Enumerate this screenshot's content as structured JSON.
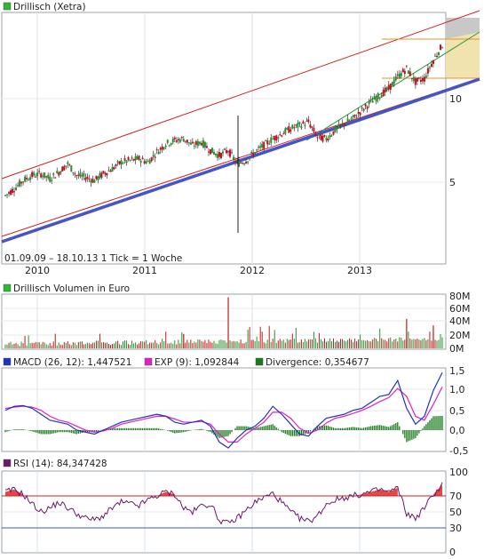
{
  "colors": {
    "price_box": "#2fb82f",
    "channel_red": "#d21f1f",
    "trend_blue": "#4455c8",
    "trend_green": "#2a9a3a",
    "candle_up": "#2c8f2c",
    "candle_down": "#c0121b",
    "volume": "#c01a1a",
    "macd": "#2233bb",
    "exp": "#e020c8",
    "divergence": "#1a7a1a",
    "rsi_line": "#6a1a6a",
    "rsi_fill": "#e34848",
    "rsi_70": "#d21f1f",
    "rsi_30": "#4455c8"
  },
  "chart_data": [
    {
      "type": "line",
      "title": "Drillisch (Xetra)",
      "note": "01.09.09 – 18.10.13   1 Tick = 1 Woche",
      "x_tick_labels": [
        "2010",
        "2011",
        "2012",
        "2013"
      ],
      "y_tick_labels": [
        "10",
        "5"
      ],
      "ylim": [
        3.5,
        14
      ],
      "series": [
        {
          "name": "Drillisch (Xetra)",
          "x": [
            "2009-09",
            "2009-10",
            "2009-11",
            "2009-12",
            "2010-01",
            "2010-02",
            "2010-03",
            "2010-04",
            "2010-05",
            "2010-06",
            "2010-07",
            "2010-08",
            "2010-09",
            "2010-10",
            "2010-11",
            "2010-12",
            "2011-01",
            "2011-02",
            "2011-03",
            "2011-04",
            "2011-05",
            "2011-06",
            "2011-07",
            "2011-08",
            "2011-09",
            "2011-10",
            "2011-11",
            "2011-12",
            "2012-01",
            "2012-02",
            "2012-03",
            "2012-04",
            "2012-05",
            "2012-06",
            "2012-07",
            "2012-08",
            "2012-09",
            "2012-10",
            "2012-11",
            "2012-12",
            "2013-01",
            "2013-02",
            "2013-03",
            "2013-04",
            "2013-05",
            "2013-06",
            "2013-07",
            "2013-08",
            "2013-09",
            "2013-10"
          ],
          "values": [
            4.2,
            4.6,
            5.1,
            5.4,
            5.5,
            5.2,
            5.6,
            6.1,
            5.4,
            5.3,
            5.1,
            5.5,
            5.8,
            6.2,
            6.3,
            6.4,
            6.2,
            6.8,
            7.3,
            7.5,
            7.6,
            7.2,
            7.4,
            6.9,
            6.6,
            6.9,
            6.1,
            6.3,
            6.8,
            7.2,
            7.6,
            7.9,
            8.2,
            8.4,
            8.6,
            7.7,
            7.6,
            8.1,
            8.5,
            8.8,
            9.3,
            9.8,
            10.2,
            10.6,
            11.3,
            11.8,
            11.0,
            11.2,
            12.3,
            13.2
          ]
        }
      ],
      "channel_lines": [
        "upper channel",
        "lower channel",
        "long-term support",
        "short-term support"
      ],
      "projection_zone": true
    },
    {
      "type": "bar",
      "title": "Drillisch Volumen in Euro",
      "y_tick_labels": [
        "80M",
        "60M",
        "40M",
        "20M",
        "0M"
      ],
      "ylim": [
        0,
        80
      ],
      "peaks": [
        {
          "x": "2011-10",
          "value": 78
        },
        {
          "x": "2011-05",
          "value": 22
        },
        {
          "x": "2013-06",
          "value": 45
        },
        {
          "x": "2013-09",
          "value": 35
        }
      ]
    },
    {
      "type": "line",
      "title": "MACD",
      "legend": [
        {
          "name": "MACD (26, 12): 1,447521",
          "color_key": "macd"
        },
        {
          "name": "EXP (9): 1,092844",
          "color_key": "exp"
        },
        {
          "name": "Divergence: 0,354677",
          "color_key": "divergence"
        }
      ],
      "y_tick_labels": [
        "1,5",
        "1,0",
        "0,5",
        "0,0",
        "-0,5"
      ],
      "ylim": [
        -0.8,
        1.6
      ],
      "macd": [
        0.5,
        0.6,
        0.62,
        0.55,
        0.4,
        0.25,
        0.2,
        0.15,
        0.0,
        -0.05,
        -0.1,
        0.0,
        0.1,
        0.2,
        0.25,
        0.3,
        0.35,
        0.4,
        0.35,
        0.2,
        0.15,
        0.2,
        0.25,
        0.1,
        -0.3,
        -0.45,
        -0.2,
        0.0,
        0.1,
        0.3,
        0.6,
        0.4,
        0.15,
        -0.1,
        -0.15,
        0.1,
        0.3,
        0.35,
        0.4,
        0.5,
        0.55,
        0.7,
        0.85,
        0.9,
        1.25,
        0.55,
        0.15,
        0.35,
        1.0,
        1.45
      ],
      "exp": [
        0.55,
        0.58,
        0.6,
        0.58,
        0.5,
        0.35,
        0.25,
        0.2,
        0.1,
        0.0,
        -0.05,
        -0.02,
        0.05,
        0.15,
        0.2,
        0.25,
        0.3,
        0.35,
        0.35,
        0.28,
        0.2,
        0.2,
        0.22,
        0.15,
        -0.1,
        -0.3,
        -0.3,
        -0.1,
        0.05,
        0.2,
        0.45,
        0.45,
        0.3,
        0.05,
        -0.08,
        0.0,
        0.18,
        0.3,
        0.35,
        0.42,
        0.5,
        0.6,
        0.72,
        0.82,
        1.05,
        0.85,
        0.35,
        0.25,
        0.65,
        1.09
      ]
    },
    {
      "type": "area",
      "title": "RSI (14): 84,347428",
      "y_tick_labels": [
        "100",
        "70",
        "50",
        "30",
        "0"
      ],
      "ylim": [
        0,
        100
      ],
      "levels": [
        70,
        30
      ],
      "values": [
        75,
        78,
        72,
        60,
        50,
        55,
        62,
        55,
        48,
        42,
        40,
        45,
        55,
        62,
        60,
        58,
        65,
        70,
        75,
        72,
        55,
        50,
        58,
        60,
        40,
        35,
        42,
        52,
        62,
        68,
        73,
        62,
        50,
        42,
        38,
        45,
        60,
        65,
        68,
        70,
        72,
        75,
        78,
        75,
        80,
        48,
        42,
        55,
        72,
        84
      ]
    }
  ]
}
